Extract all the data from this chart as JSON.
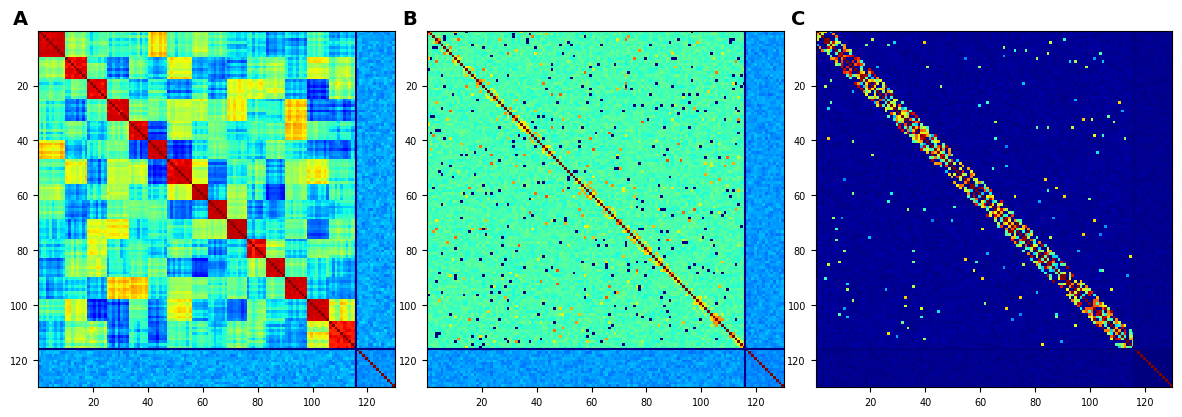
{
  "n": 130,
  "n_main": 116,
  "tick_positions": [
    20,
    40,
    60,
    80,
    100,
    120
  ],
  "label_A": "A",
  "label_B": "B",
  "label_C": "C",
  "label_fontsize": 14,
  "label_fontweight": "bold",
  "background_color": "#ffffff",
  "cmap_A": "jet",
  "cmap_B": "jet",
  "cmap_C": "jet",
  "seed": 7
}
